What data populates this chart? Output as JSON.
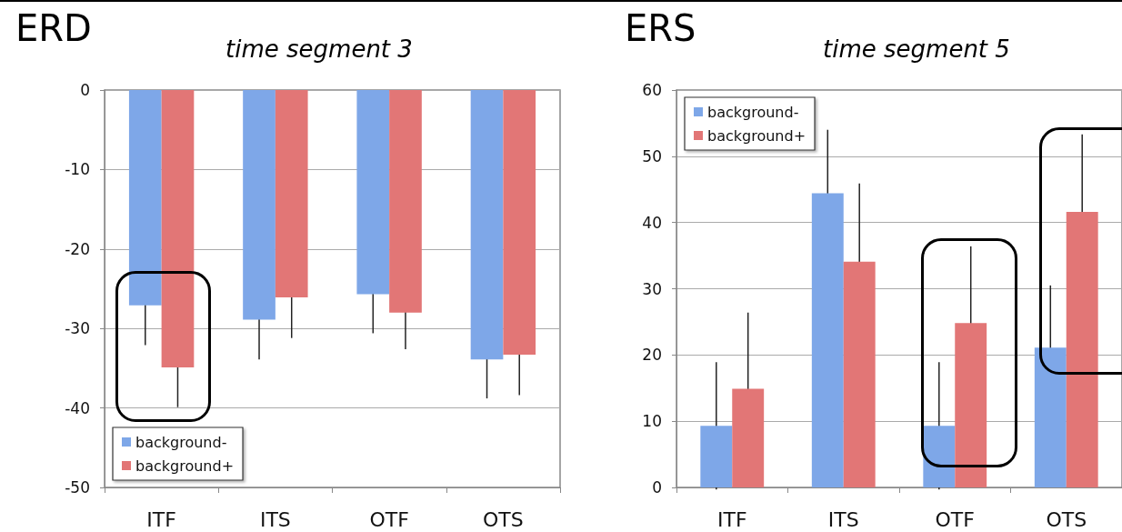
{
  "chart_data": [
    {
      "type": "bar",
      "title": "ERD",
      "subtitle": "time segment 3",
      "categories": [
        "ITF",
        "ITS",
        "OTF",
        "OTS"
      ],
      "series": [
        {
          "name": "background-",
          "color": "#7ea7e8",
          "values": [
            -27.1,
            -28.9,
            -25.7,
            -33.9
          ],
          "errors": [
            5.0,
            5.0,
            4.9,
            4.9
          ]
        },
        {
          "name": "background+",
          "color": "#e27676",
          "values": [
            -34.9,
            -26.1,
            -28.0,
            -33.3
          ],
          "errors": [
            5.0,
            5.1,
            4.6,
            5.1
          ]
        }
      ],
      "ylim": [
        -50,
        0
      ],
      "yticks": [
        -50,
        -40,
        -30,
        -20,
        -10,
        0
      ],
      "grid": "y",
      "legend": "bottom left"
    },
    {
      "type": "bar",
      "title": "ERS",
      "subtitle": "time segment 5",
      "categories": [
        "ITF",
        "ITS",
        "OTF",
        "OTS"
      ],
      "series": [
        {
          "name": "background-",
          "color": "#7ea7e8",
          "values": [
            9.3,
            44.4,
            9.3,
            21.1
          ],
          "errors": [
            9.6,
            9.6,
            9.6,
            9.4
          ]
        },
        {
          "name": "background+",
          "color": "#e27676",
          "values": [
            14.9,
            34.1,
            24.8,
            41.6
          ],
          "errors": [
            11.5,
            11.8,
            11.6,
            11.7
          ]
        }
      ],
      "ylim": [
        0,
        60
      ],
      "yticks": [
        0,
        10,
        20,
        30,
        40,
        50,
        60
      ],
      "grid": "y",
      "legend": "top left"
    }
  ]
}
